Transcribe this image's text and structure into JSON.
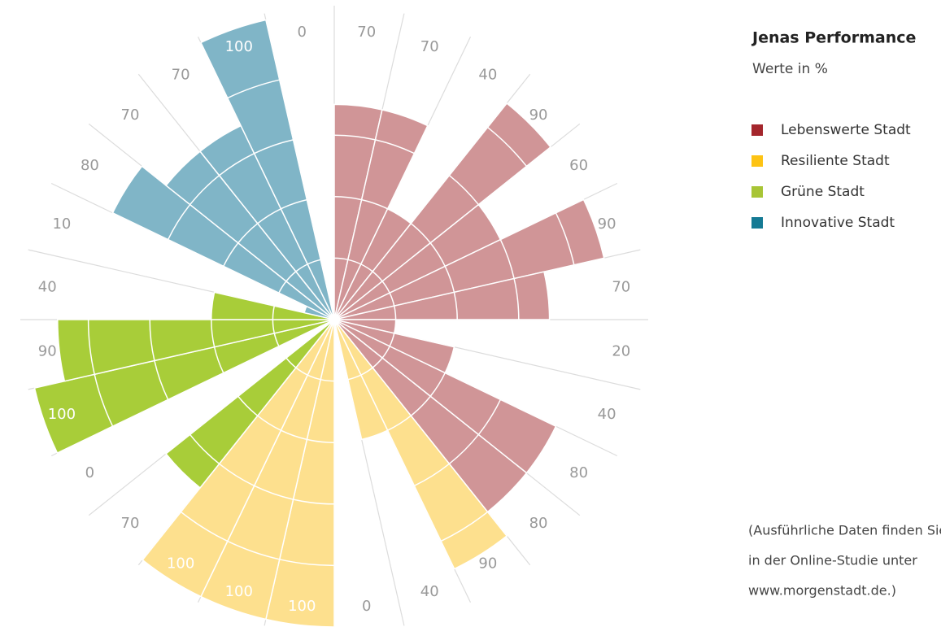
{
  "chart_data": {
    "type": "polar_area",
    "title": "Jenas Performance",
    "subtitle": "Werte in %",
    "series": [
      {
        "name": "Lebenswerte Stadt",
        "color": "#a4262c",
        "bar_color": "#d09597",
        "values": [
          70,
          70,
          40,
          90,
          60,
          90,
          70,
          20,
          40,
          80,
          80
        ]
      },
      {
        "name": "Resiliente Stadt",
        "color": "#fdc314",
        "bar_color": "#fde08e",
        "values": [
          90,
          40,
          0,
          100,
          100,
          100
        ]
      },
      {
        "name": "Grüne Stadt",
        "color": "#a8c536",
        "bar_color": "#a8cd39",
        "values": [
          70,
          0,
          100,
          90,
          40
        ]
      },
      {
        "name": "Innovative Stadt",
        "color": "#157a94",
        "bar_color": "#80b5c7",
        "values": [
          10,
          80,
          70,
          70,
          100,
          0
        ]
      }
    ],
    "rlim": [
      0,
      100
    ],
    "rticks": [
      20,
      40,
      60,
      80
    ],
    "note": [
      "(Ausführliche Daten finden Sie",
      "in der Online-Studie unter",
      "www.morgenstadt.de.)"
    ]
  }
}
